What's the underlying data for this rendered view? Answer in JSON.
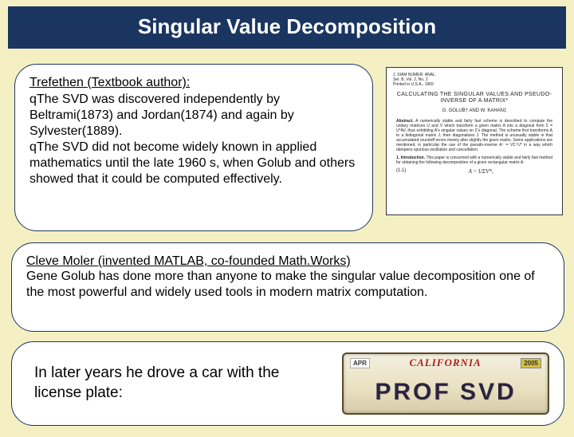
{
  "title": "Singular Value Decomposition",
  "box1": {
    "heading": "Trefethen (Textbook author):",
    "line1a": "q",
    "line1b": "The SVD was discovered independently by Beltrami(1873) and Jordan(1874) and again by Sylvester(1889).",
    "line2a": "q",
    "line2b": "The SVD did not become widely known in applied mathematics until the late 1960 s, when Golub and others showed that it could be computed effectively."
  },
  "paper": {
    "meta": "J. SIAM NUMER. ANAL.\nSer. B, Vol. 2, No. 2\nPrinted in U.S.A., 1965",
    "title": "CALCULATING THE SINGULAR VALUES AND PSEUDO-INVERSE OF A MATRIX*",
    "authors": "G. GOLUB† AND W. KAHAN‡",
    "abs_label": "Abstract.",
    "abs": "A numerically stable and fairly fast scheme is described to compute the unitary matrices U and V which transform a given matrix A into a diagonal form Σ = U*AV, thus exhibiting A's singular values on Σ's diagonal. The scheme first transforms A to a bidiagonal matrix J, then diagonalizes J. The method is unusually stable in that accumulated roundoff errors merely alter slightly the given matrix. Some applications are mentioned, in particular the use of the pseudo-inverse A⁺ = VΣ⁺U* in a way which dampens spurious oscillation and cancellation.",
    "sec_label": "1. Introduction.",
    "sec": "This paper is concerned with a numerically stable and fairly fast method for obtaining the following decomposition of a given rectangular matrix A:",
    "eqnum": "(1.1)",
    "eqn": "A = UΣV*,"
  },
  "box2": {
    "heading": "Cleve Moler (invented MATLAB, co-founded Math.Works)",
    "body": "Gene Golub has done more than anyone to make the singular value decomposition one of the most powerful and widely used tools in modern matrix computation."
  },
  "box3": {
    "body": "In later years he drove a car with the license plate:",
    "plate_month": "APR",
    "plate_state": "CALIFORNIA",
    "plate_year": "2005",
    "plate_text": "PROF SVD"
  },
  "colors": {
    "page_bg": "#f5f0c4",
    "title_bg": "#1a3660",
    "title_fg": "#ffffff",
    "box_bg": "#ffffff",
    "box_border": "#1a3660",
    "plate_text": "#2a2340",
    "plate_state": "#b02020"
  }
}
